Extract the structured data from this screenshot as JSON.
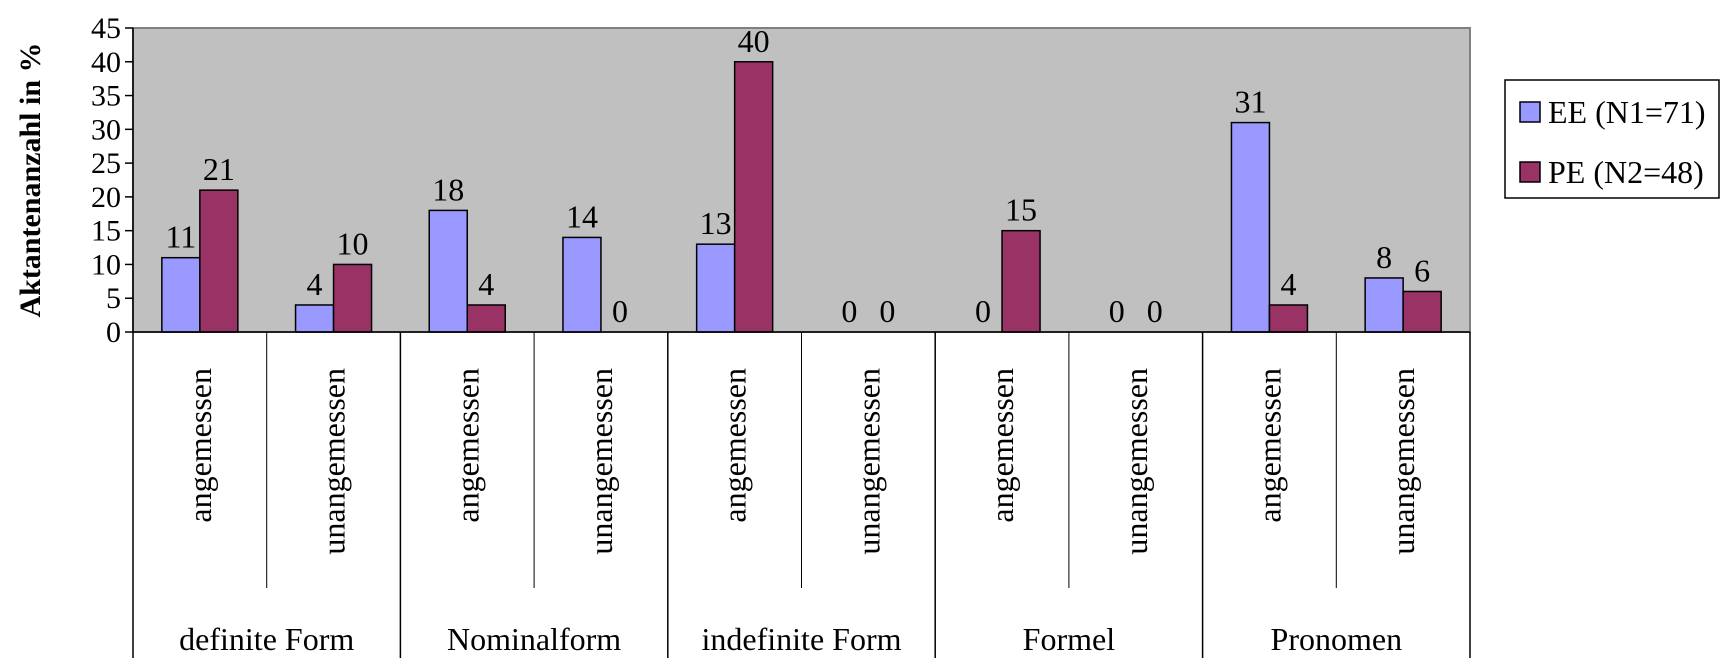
{
  "chart_data": {
    "type": "bar",
    "ylabel": "Aktantenanzahl in %",
    "ylim": [
      0,
      45
    ],
    "yticks": [
      0,
      5,
      10,
      15,
      20,
      25,
      30,
      35,
      40,
      45
    ],
    "grid": false,
    "legend_position": "right",
    "groups": [
      {
        "label": "definite Form",
        "subcategories": [
          "angemessen",
          "unangemessen"
        ]
      },
      {
        "label": "Nominalform",
        "subcategories": [
          "angemessen",
          "unangemessen"
        ]
      },
      {
        "label": "indefinite Form",
        "subcategories": [
          "angemessen",
          "unangemessen"
        ]
      },
      {
        "label": "Formel",
        "subcategories": [
          "angemessen",
          "unangemessen"
        ]
      },
      {
        "label": "Pronomen",
        "subcategories": [
          "angemessen",
          "unangemessen"
        ]
      }
    ],
    "series": [
      {
        "name": "EE (N1=71)",
        "color": "#9999ff",
        "values": [
          11,
          4,
          18,
          14,
          13,
          0,
          0,
          0,
          31,
          8
        ]
      },
      {
        "name": "PE (N2=48)",
        "color": "#993366",
        "values": [
          21,
          10,
          4,
          0,
          40,
          0,
          15,
          0,
          4,
          6
        ]
      }
    ],
    "plot_background": "#c0c0c0"
  }
}
